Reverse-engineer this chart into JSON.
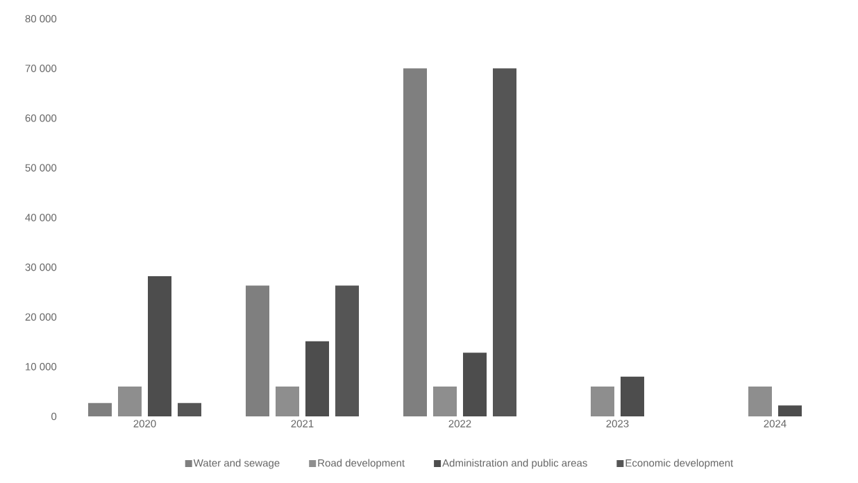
{
  "chart_data": {
    "type": "bar",
    "categories": [
      "2020",
      "2021",
      "2022",
      "2023",
      "2024"
    ],
    "series": [
      {
        "name": "Water and sewage",
        "color": "#7f7f7f",
        "values": [
          2700,
          26300,
          70000,
          null,
          null
        ]
      },
      {
        "name": "Road development",
        "color": "#8e8e8e",
        "values": [
          6000,
          6000,
          6000,
          6000,
          6000
        ]
      },
      {
        "name": "Administration and public areas",
        "color": "#4d4d4d",
        "values": [
          28200,
          15100,
          12800,
          8000,
          2200
        ]
      },
      {
        "name": "Economic development",
        "color": "#555555",
        "values": [
          2700,
          26300,
          70000,
          null,
          null
        ]
      }
    ],
    "ylim": [
      0,
      80000
    ],
    "yticks": [
      0,
      {
        "value": 10000,
        "label": "10 000"
      },
      {
        "value": 20000,
        "label": "20 000"
      },
      {
        "value": 30000,
        "label": "30 000"
      },
      {
        "value": 40000,
        "label": "40 000"
      },
      {
        "value": 50000,
        "label": "50 000"
      },
      {
        "value": 60000,
        "label": "60 000"
      },
      {
        "value": 70000,
        "label": "70 000"
      },
      {
        "value": 80000,
        "label": "80 000"
      }
    ],
    "grid": false,
    "legend": "bottom"
  }
}
